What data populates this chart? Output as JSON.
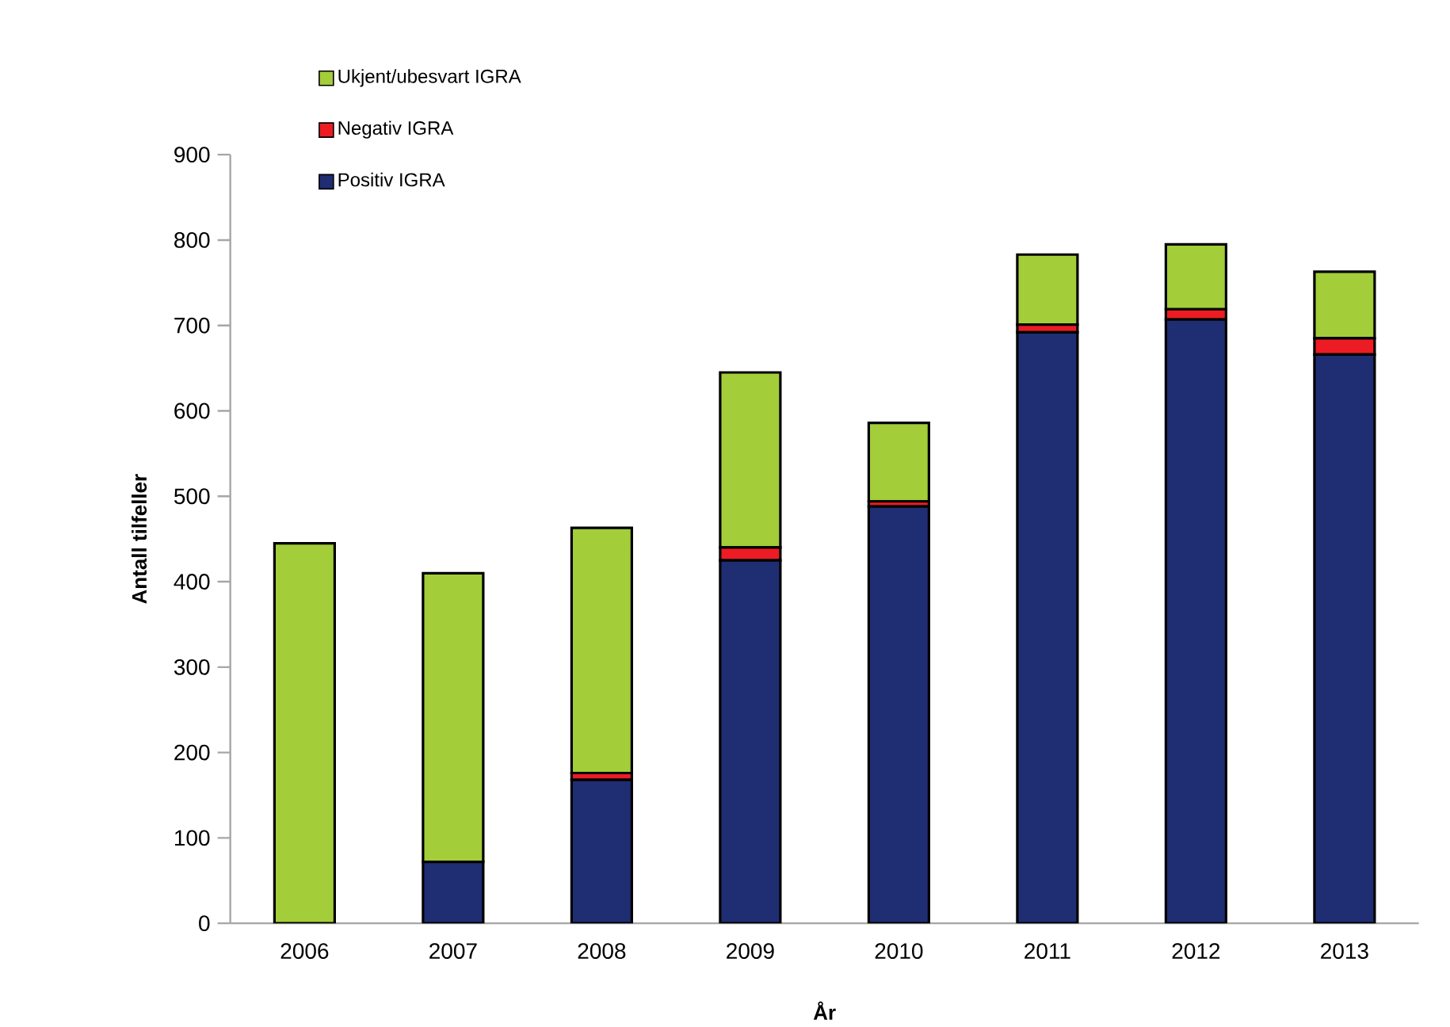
{
  "chart_data": {
    "type": "bar",
    "stacked": true,
    "xlabel": "År",
    "ylabel": "Antall tilfeller",
    "categories": [
      "2006",
      "2007",
      "2008",
      "2009",
      "2010",
      "2011",
      "2012",
      "2013"
    ],
    "series": [
      {
        "name": "Positiv IGRA",
        "color": "#1f2d73",
        "values": [
          0,
          72,
          168,
          425,
          488,
          692,
          707,
          666
        ]
      },
      {
        "name": "Negativ IGRA",
        "color": "#ed1c24",
        "values": [
          0,
          null,
          8,
          15,
          6,
          9,
          12,
          19
        ]
      },
      {
        "name": "Ukjent/ubesvart IGRA",
        "color": "#a3cd39",
        "values": [
          445,
          338,
          287,
          205,
          92,
          82,
          76,
          78
        ]
      }
    ],
    "ylim": [
      0,
      900
    ],
    "yticks": [
      0,
      100,
      200,
      300,
      400,
      500,
      600,
      700,
      800,
      900
    ],
    "legend": "top left",
    "grid": false
  }
}
